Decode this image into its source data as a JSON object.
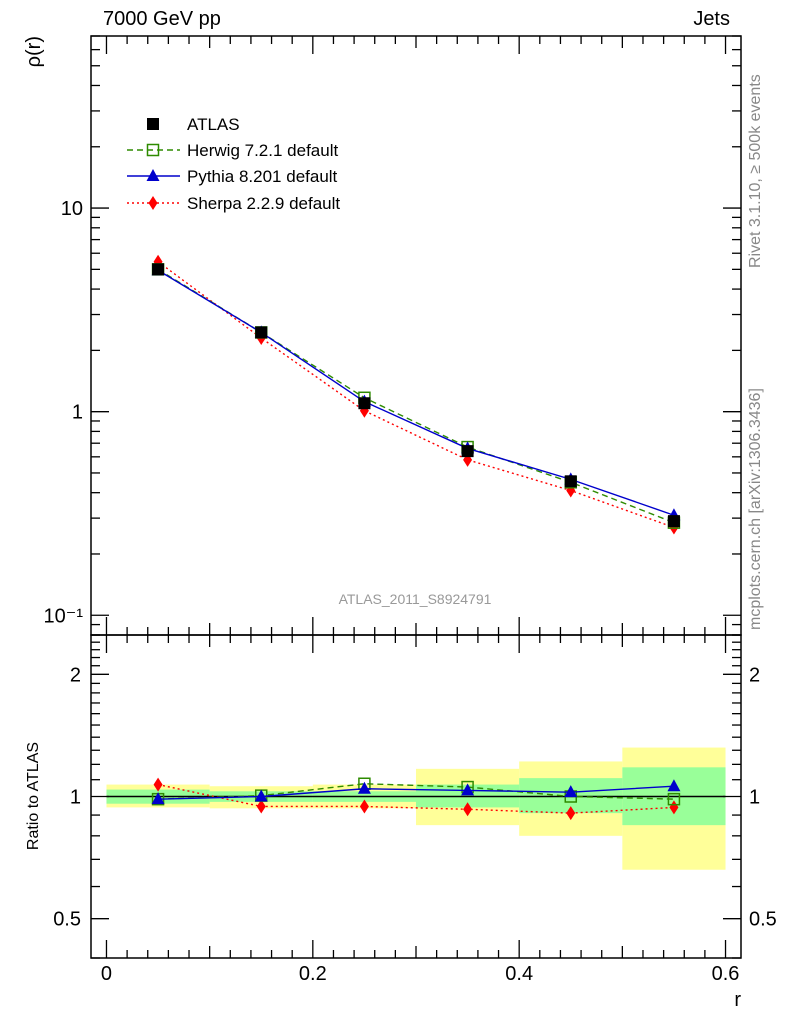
{
  "header": {
    "left": "7000 GeV pp",
    "right": "Jets"
  },
  "side_text": {
    "rivet": "Rivet 3.1.10, ≥ 500k events",
    "mcplots": "mcplots.cern.ch [arXiv:1306.3436]"
  },
  "watermark": "ATLAS_2011_S8924791",
  "colors": {
    "atlas": "#000000",
    "herwig": "#2e8b00",
    "pythia": "#0000cc",
    "sherpa": "#ff0000",
    "band_inner": "#99ff99",
    "band_outer": "#ffff99"
  },
  "chart_data": [
    {
      "type": "line",
      "ylabel": "ρ(r)",
      "xlabel": "",
      "yscale": "log",
      "ylim": [
        0.08,
        70
      ],
      "xlim": [
        -0.015,
        0.615
      ],
      "yticks": [
        {
          "value": 10,
          "label": "10"
        },
        {
          "value": 1,
          "label": "1"
        },
        {
          "value": 0.1,
          "label": "10⁻¹"
        }
      ],
      "legend_position": "top-left",
      "x": [
        0.05,
        0.15,
        0.25,
        0.35,
        0.45,
        0.55
      ],
      "series": [
        {
          "name": "ATLAS",
          "marker": "square-filled",
          "values": [
            5.0,
            2.45,
            1.1,
            0.64,
            0.455,
            0.29
          ]
        },
        {
          "name": "Herwig 7.2.1 default",
          "marker": "square-open",
          "line": "dashed",
          "values": [
            5.0,
            2.45,
            1.17,
            0.67,
            0.45,
            0.285
          ]
        },
        {
          "name": "Pythia 8.201 default",
          "marker": "triangle",
          "line": "solid",
          "values": [
            4.95,
            2.45,
            1.12,
            0.66,
            0.465,
            0.31
          ]
        },
        {
          "name": "Sherpa 2.2.9 default",
          "marker": "diamond",
          "line": "dotted",
          "values": [
            5.45,
            2.3,
            1.01,
            0.58,
            0.41,
            0.27
          ]
        }
      ]
    },
    {
      "type": "line",
      "ylabel": "Ratio to ATLAS",
      "xlabel": "r",
      "yscale": "log",
      "ylim": [
        0.4,
        2.5
      ],
      "xlim": [
        -0.015,
        0.615
      ],
      "yticks": [
        {
          "value": 2,
          "label": "2"
        },
        {
          "value": 1,
          "label": "1"
        },
        {
          "value": 0.5,
          "label": "0.5"
        }
      ],
      "xticks": [
        {
          "value": 0,
          "label": "0"
        },
        {
          "value": 0.2,
          "label": "0.2"
        },
        {
          "value": 0.4,
          "label": "0.4"
        },
        {
          "value": 0.6,
          "label": "0.6"
        }
      ],
      "uncertainty_bands": [
        {
          "xlow": 0.0,
          "xhigh": 0.1,
          "inner": [
            0.96,
            1.04
          ],
          "outer": [
            0.94,
            1.07
          ]
        },
        {
          "xlow": 0.1,
          "xhigh": 0.2,
          "inner": [
            0.97,
            1.03
          ],
          "outer": [
            0.935,
            1.06
          ]
        },
        {
          "xlow": 0.2,
          "xhigh": 0.3,
          "inner": [
            0.97,
            1.03
          ],
          "outer": [
            0.935,
            1.07
          ]
        },
        {
          "xlow": 0.3,
          "xhigh": 0.4,
          "inner": [
            0.94,
            1.07
          ],
          "outer": [
            0.85,
            1.17
          ]
        },
        {
          "xlow": 0.4,
          "xhigh": 0.5,
          "inner": [
            0.91,
            1.11
          ],
          "outer": [
            0.8,
            1.22
          ]
        },
        {
          "xlow": 0.5,
          "xhigh": 0.6,
          "inner": [
            0.85,
            1.18
          ],
          "outer": [
            0.66,
            1.32
          ]
        }
      ],
      "x": [
        0.05,
        0.15,
        0.25,
        0.35,
        0.45,
        0.55
      ],
      "series": [
        {
          "name": "Herwig 7.2.1 default",
          "values": [
            0.985,
            1.005,
            1.075,
            1.055,
            1.0,
            0.985
          ]
        },
        {
          "name": "Pythia 8.201 default",
          "values": [
            0.985,
            1.0,
            1.045,
            1.035,
            1.025,
            1.06
          ]
        },
        {
          "name": "Sherpa 2.2.9 default",
          "values": [
            1.07,
            0.945,
            0.945,
            0.93,
            0.91,
            0.94
          ]
        }
      ]
    }
  ]
}
